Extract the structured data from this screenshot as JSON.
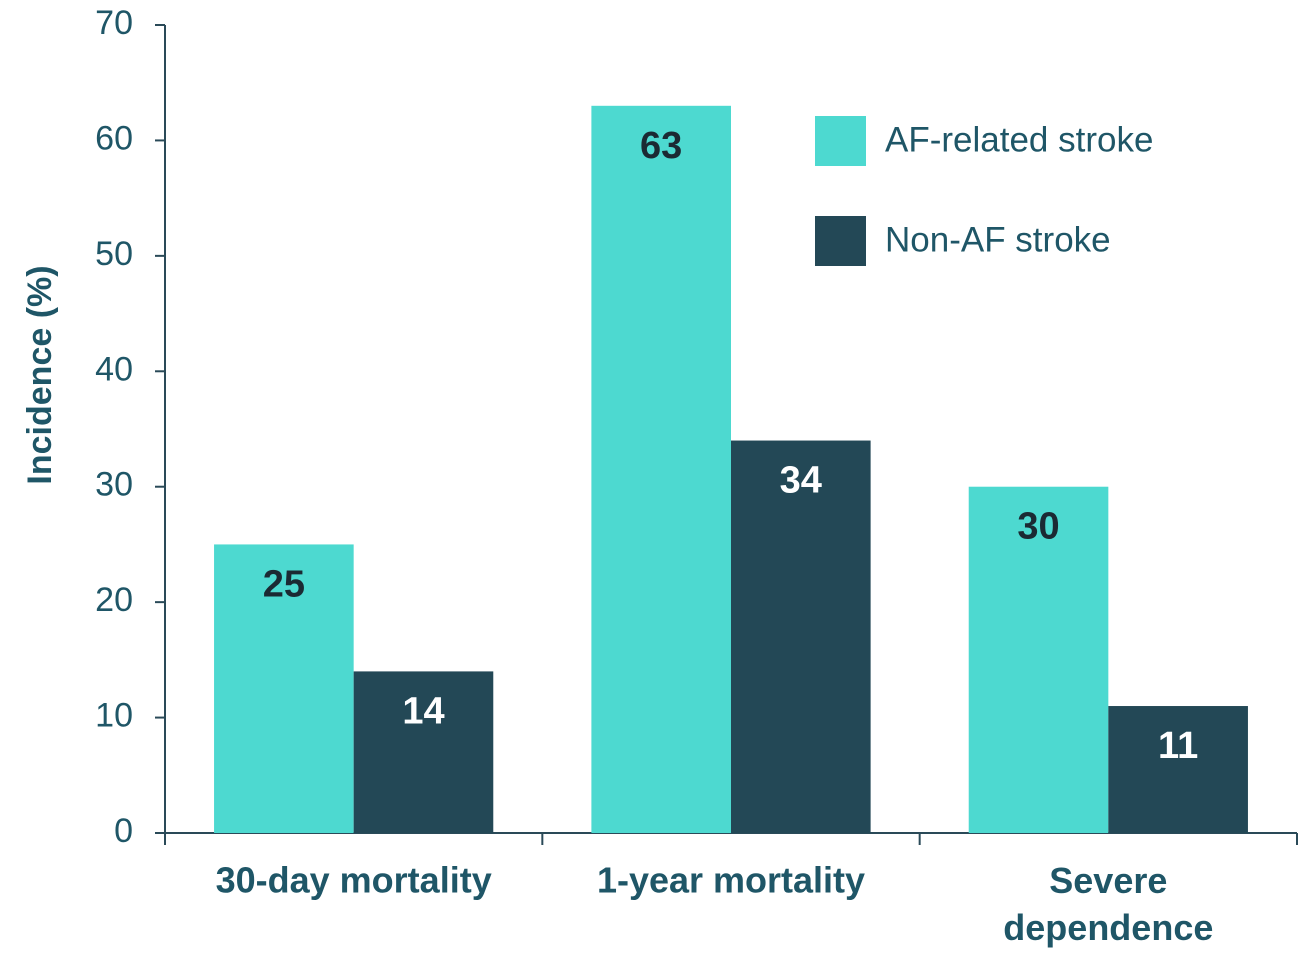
{
  "chart_data": {
    "type": "bar",
    "y_axis_label": "Incidence (%)",
    "categories": [
      "30-day mortality",
      "1-year mortality",
      "Severe\ndependence"
    ],
    "series": [
      {
        "name": "AF-related stroke",
        "color": "#4dd9d0",
        "values": [
          25,
          63,
          30
        ]
      },
      {
        "name": "Non-AF stroke",
        "color": "#234856",
        "values": [
          14,
          34,
          11
        ]
      }
    ],
    "ylim": [
      0,
      70
    ],
    "yticks": [
      0,
      10,
      20,
      30,
      40,
      50,
      60,
      70
    ],
    "grid": false,
    "legend": "upper right"
  }
}
